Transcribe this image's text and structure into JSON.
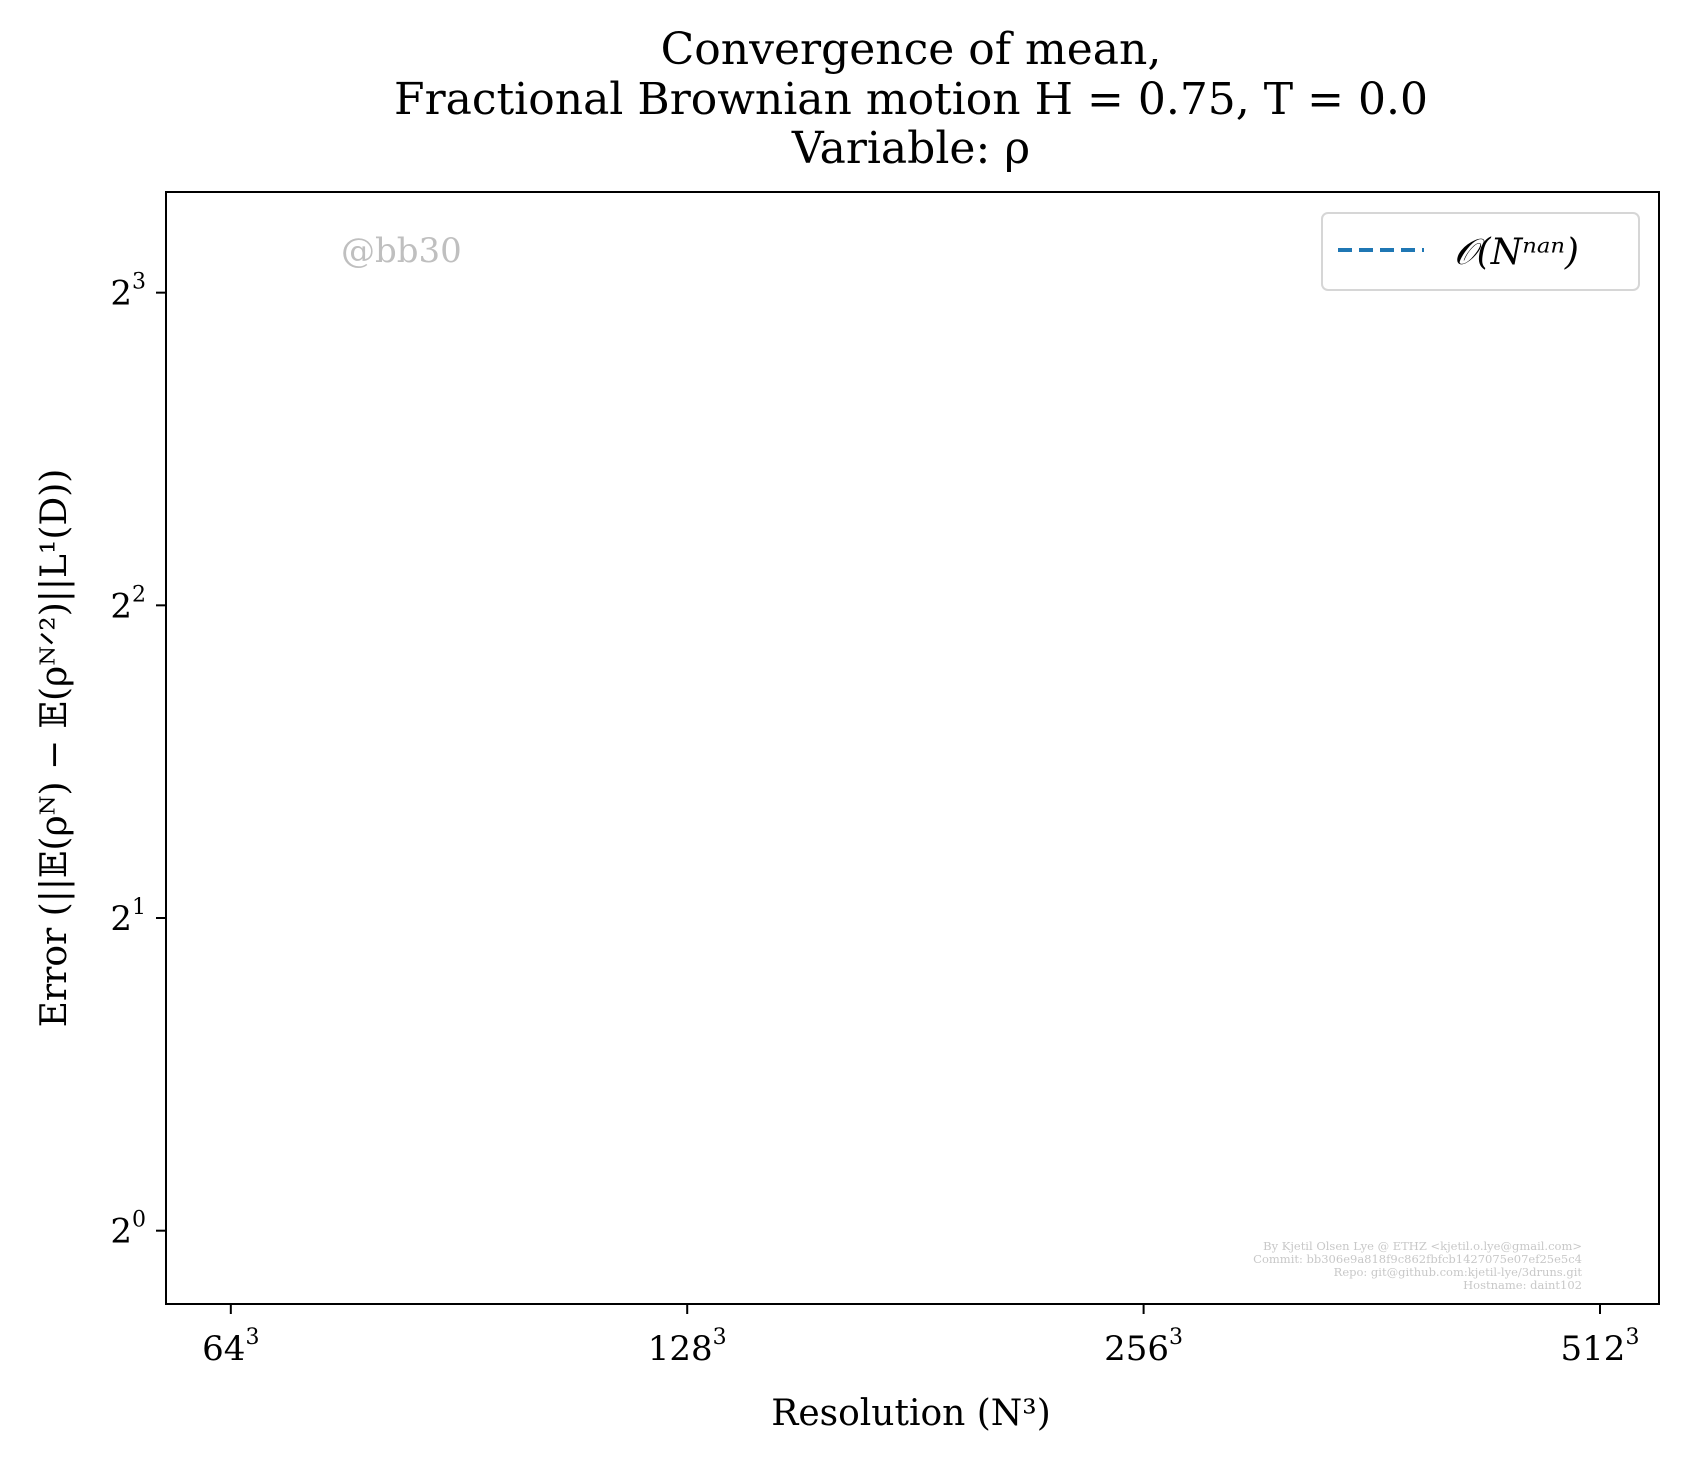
{
  "colors": {
    "line": "#1f77b4",
    "axis": "#000000",
    "watermark": "#bfbfbf",
    "footer": "#c8c8c8",
    "legend_border": "#d6d6d6"
  },
  "chart_data": {
    "type": "line",
    "title_lines": [
      "Convergence of mean,",
      "Fractional Brownian motion H = 0.75, T = 0.0",
      "Variable: ρ"
    ],
    "xlabel": "Resolution (N³)",
    "ylabel": "Error (||𝔼(ρᴺ) − 𝔼(ρᴺᐟ²)||L¹(D))",
    "x_scale": "log2",
    "y_scale": "log2",
    "xlim": [
      58,
      560
    ],
    "ylim": [
      0.85,
      10.0
    ],
    "x_ticks": [
      {
        "value": 64,
        "base": "64",
        "exp": "3"
      },
      {
        "value": 128,
        "base": "128",
        "exp": "3"
      },
      {
        "value": 256,
        "base": "256",
        "exp": "3"
      },
      {
        "value": 512,
        "base": "512",
        "exp": "3"
      }
    ],
    "y_ticks": [
      {
        "value": 1,
        "base": "2",
        "exp": "0"
      },
      {
        "value": 2,
        "base": "2",
        "exp": "1"
      },
      {
        "value": 4,
        "base": "2",
        "exp": "2"
      },
      {
        "value": 8,
        "base": "2",
        "exp": "3"
      }
    ],
    "series": [
      {
        "name": "𝒪(Nⁿᵃⁿ)",
        "style": "dashed",
        "x": [],
        "y": []
      }
    ],
    "legend_position": "top-right",
    "grid": false,
    "watermark": "@bb30",
    "footer_lines": [
      "By Kjetil Olsen Lye @ ETHZ <kjetil.o.lye@gmail.com>",
      "Commit: bb306e9a818f9c862fbfcb1427075e07ef25e5c4",
      "Repo: git@github.com:kjetil-lye/3druns.git",
      "Hostname: daint102"
    ]
  }
}
